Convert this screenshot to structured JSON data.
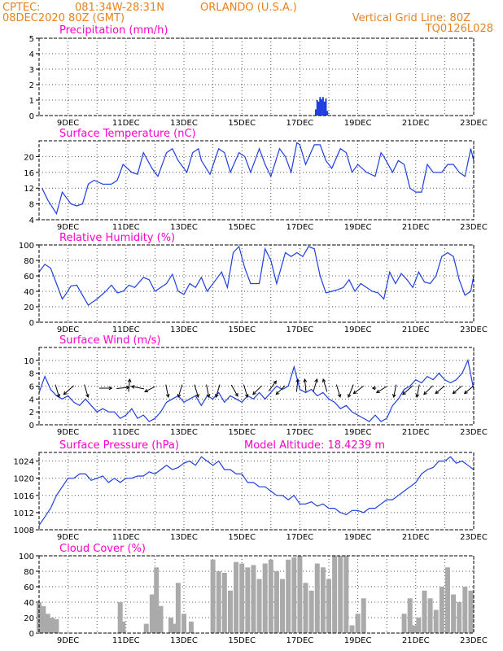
{
  "header": {
    "source": "CPTEC:",
    "coords": "081:34W-28:31N",
    "location": "ORLANDO (U.S.A.)",
    "date": "08DEC2020 80Z (GMT)",
    "grid_note": "Vertical Grid Line: 80Z",
    "code": "TQ0126L028"
  },
  "colors": {
    "header": "#e8821e",
    "title": "#ff00cc",
    "series": "#1f3fe0",
    "bars": "#aaaaaa"
  },
  "chart_data": [
    {
      "id": "precip",
      "type": "bar",
      "title": "Precipitation (mm/h)",
      "xlabels": [
        "9DEC",
        "11DEC",
        "13DEC",
        "15DEC",
        "17DEC",
        "19DEC",
        "21DEC",
        "23DEC"
      ],
      "ylim": [
        0,
        5
      ],
      "yticks": [
        0,
        1,
        2,
        3,
        4,
        5
      ],
      "x": [
        17.55,
        17.6,
        17.65,
        17.7,
        17.75,
        17.8,
        17.85,
        17.9,
        17.95
      ],
      "values": [
        0.4,
        1.0,
        0.9,
        1.2,
        1.05,
        1.2,
        0.9,
        1.1,
        0.3
      ]
    },
    {
      "id": "temp",
      "type": "line",
      "title": "Surface Temperature (nC)",
      "xlabels": [
        "9DEC",
        "11DEC",
        "13DEC",
        "15DEC",
        "17DEC",
        "19DEC",
        "21DEC",
        "23DEC"
      ],
      "ylim": [
        4,
        24
      ],
      "yticks": [
        4,
        8,
        12,
        16,
        20
      ],
      "x": [
        8.1,
        8.3,
        8.6,
        8.8,
        9.1,
        9.3,
        9.5,
        9.7,
        9.9,
        10.2,
        10.5,
        10.7,
        10.9,
        11.2,
        11.4,
        11.6,
        11.9,
        12.1,
        12.4,
        12.6,
        12.8,
        13.1,
        13.3,
        13.5,
        13.6,
        13.9,
        14.2,
        14.4,
        14.6,
        14.9,
        15.1,
        15.3,
        15.6,
        15.8,
        16.0,
        16.3,
        16.5,
        16.7,
        16.9,
        17.0,
        17.2,
        17.5,
        17.7,
        17.9,
        18.1,
        18.4,
        18.6,
        18.8,
        19.0,
        19.3,
        19.6,
        19.8,
        19.9,
        20.2,
        20.4,
        20.6,
        20.8,
        21.0,
        21.2,
        21.4,
        21.6,
        21.9,
        22.1,
        22.3,
        22.5,
        22.7,
        22.9,
        23.0
      ],
      "values": [
        12,
        9,
        5.5,
        11,
        8,
        7.5,
        8,
        13,
        14,
        13,
        13,
        14,
        18,
        16,
        15.5,
        21,
        17,
        15,
        21,
        22,
        19,
        16,
        21,
        22,
        19,
        15.5,
        22,
        21,
        16,
        21,
        20,
        16,
        22,
        18,
        15,
        22,
        20,
        16,
        23.5,
        23,
        18,
        23,
        23,
        19,
        17,
        22,
        21,
        16,
        18,
        16,
        15,
        21,
        20,
        16,
        19,
        18,
        12,
        11,
        11,
        18,
        16,
        16,
        18,
        18,
        16,
        15,
        22,
        19
      ]
    },
    {
      "id": "rh",
      "type": "line",
      "title": "Relative Humidity (%)",
      "xlabels": [
        "9DEC",
        "11DEC",
        "13DEC",
        "15DEC",
        "17DEC",
        "19DEC",
        "21DEC",
        "23DEC"
      ],
      "ylim": [
        0,
        100
      ],
      "yticks": [
        0,
        20,
        40,
        60,
        80,
        100
      ],
      "x": [
        8.0,
        8.2,
        8.4,
        8.6,
        8.8,
        8.9,
        9.1,
        9.3,
        9.5,
        9.7,
        9.8,
        10.0,
        10.3,
        10.5,
        10.7,
        10.9,
        11.1,
        11.3,
        11.6,
        11.8,
        12.0,
        12.2,
        12.4,
        12.6,
        12.8,
        13.0,
        13.2,
        13.4,
        13.6,
        13.8,
        14.1,
        14.3,
        14.5,
        14.7,
        14.9,
        15.1,
        15.3,
        15.6,
        15.8,
        16.0,
        16.2,
        16.5,
        16.7,
        16.9,
        17.1,
        17.3,
        17.5,
        17.7,
        17.9,
        18.1,
        18.3,
        18.5,
        18.7,
        18.9,
        19.1,
        19.3,
        19.5,
        19.7,
        19.9,
        20.1,
        20.3,
        20.5,
        20.7,
        20.9,
        21.1,
        21.3,
        21.5,
        21.7,
        21.9,
        22.1,
        22.3,
        22.5,
        22.7,
        22.9,
        23.0
      ],
      "values": [
        65,
        75,
        70,
        50,
        30,
        35,
        47,
        48,
        35,
        22,
        25,
        30,
        40,
        48,
        38,
        40,
        48,
        45,
        58,
        55,
        40,
        45,
        50,
        62,
        40,
        36,
        50,
        45,
        58,
        40,
        55,
        65,
        45,
        90,
        98,
        70,
        50,
        50,
        95,
        80,
        50,
        90,
        85,
        90,
        85,
        98,
        95,
        60,
        38,
        40,
        42,
        45,
        55,
        40,
        50,
        45,
        40,
        38,
        30,
        65,
        50,
        63,
        55,
        45,
        65,
        52,
        50,
        60,
        85,
        90,
        85,
        55,
        35,
        40,
        60
      ]
    },
    {
      "id": "wind",
      "type": "line",
      "title": "Surface Wind (m/s)",
      "xlabels": [
        "9DEC",
        "11DEC",
        "13DEC",
        "15DEC",
        "17DEC",
        "19DEC",
        "21DEC",
        "23DEC"
      ],
      "ylim": [
        0,
        12
      ],
      "yticks": [
        0,
        2,
        4,
        6,
        8,
        10
      ],
      "x": [
        8.0,
        8.2,
        8.4,
        8.6,
        8.8,
        9.0,
        9.2,
        9.4,
        9.6,
        9.8,
        10.0,
        10.2,
        10.4,
        10.6,
        10.8,
        11.0,
        11.2,
        11.4,
        11.6,
        11.8,
        12.0,
        12.2,
        12.4,
        12.6,
        12.8,
        13.0,
        13.2,
        13.4,
        13.6,
        13.8,
        14.0,
        14.2,
        14.4,
        14.6,
        14.8,
        15.0,
        15.2,
        15.4,
        15.6,
        15.8,
        16.0,
        16.2,
        16.4,
        16.6,
        16.8,
        17.0,
        17.2,
        17.4,
        17.6,
        17.8,
        18.0,
        18.2,
        18.4,
        18.6,
        18.8,
        19.0,
        19.2,
        19.4,
        19.6,
        19.8,
        20.0,
        20.2,
        20.4,
        20.6,
        20.8,
        21.0,
        21.2,
        21.4,
        21.6,
        21.8,
        22.0,
        22.2,
        22.4,
        22.6,
        22.8,
        23.0
      ],
      "values": [
        5,
        7.5,
        5.5,
        4.5,
        4,
        4.5,
        3.5,
        3,
        4,
        3,
        2,
        2.5,
        2,
        2,
        1,
        1.5,
        2.5,
        1,
        1.5,
        0.5,
        1,
        2,
        3.5,
        4,
        4.5,
        3.5,
        4,
        4.5,
        3,
        4.5,
        4,
        5,
        3.5,
        4.5,
        4,
        3.5,
        4.5,
        4,
        5,
        4,
        5,
        6,
        5.5,
        6,
        9,
        5.5,
        5,
        5.5,
        4.5,
        5,
        4,
        3.5,
        2.5,
        3,
        2,
        1.5,
        1,
        0.5,
        1.5,
        0.5,
        1,
        3,
        4,
        5.5,
        6,
        7,
        6.5,
        7.5,
        7,
        8,
        7,
        6.5,
        7,
        8,
        10,
        5.5
      ],
      "arrows": [
        {
          "x": 8.6,
          "dx": 0.3,
          "dy": -1
        },
        {
          "x": 9.1,
          "dx": -0.8,
          "dy": -0.7
        },
        {
          "x": 9.6,
          "dx": 0.3,
          "dy": -1
        },
        {
          "x": 10.2,
          "dx": 1,
          "dy": 0
        },
        {
          "x": 10.8,
          "dx": 1,
          "dy": 0.1
        },
        {
          "x": 11.1,
          "dx": 0.1,
          "dy": 1
        },
        {
          "x": 11.5,
          "dx": -1,
          "dy": 0.2
        },
        {
          "x": 11.9,
          "dx": -0.8,
          "dy": -0.4
        },
        {
          "x": 12.4,
          "dx": 0.2,
          "dy": -1
        },
        {
          "x": 12.9,
          "dx": -0.3,
          "dy": -1
        },
        {
          "x": 13.4,
          "dx": 0.3,
          "dy": -1
        },
        {
          "x": 13.8,
          "dx": 0.2,
          "dy": -1
        },
        {
          "x": 14.2,
          "dx": -0.3,
          "dy": -1
        },
        {
          "x": 14.7,
          "dx": 0.5,
          "dy": -0.9
        },
        {
          "x": 15.1,
          "dx": 0.3,
          "dy": -1
        },
        {
          "x": 15.6,
          "dx": -0.7,
          "dy": -0.7
        },
        {
          "x": 16.0,
          "dx": 0.6,
          "dy": 0.8
        },
        {
          "x": 16.4,
          "dx": -0.7,
          "dy": -0.7
        },
        {
          "x": 16.9,
          "dx": 0.1,
          "dy": 1
        },
        {
          "x": 17.2,
          "dx": -0.1,
          "dy": 1
        },
        {
          "x": 17.5,
          "dx": 0.3,
          "dy": 1
        },
        {
          "x": 17.9,
          "dx": -0.3,
          "dy": 1
        },
        {
          "x": 18.3,
          "dx": 0.3,
          "dy": -1
        },
        {
          "x": 18.8,
          "dx": -0.4,
          "dy": -1
        },
        {
          "x": 19.1,
          "dx": -0.8,
          "dy": -0.6
        },
        {
          "x": 19.6,
          "dx": -0.3,
          "dy": 0
        },
        {
          "x": 19.9,
          "dx": -0.8,
          "dy": -0.5
        },
        {
          "x": 20.3,
          "dx": -0.2,
          "dy": -1
        },
        {
          "x": 20.8,
          "dx": -0.8,
          "dy": -0.7
        },
        {
          "x": 21.1,
          "dx": -0.2,
          "dy": -1
        },
        {
          "x": 21.5,
          "dx": -0.7,
          "dy": -0.7
        },
        {
          "x": 21.9,
          "dx": -0.7,
          "dy": -0.6
        },
        {
          "x": 22.5,
          "dx": -0.7,
          "dy": -0.6
        },
        {
          "x": 22.9,
          "dx": -0.7,
          "dy": -0.6
        }
      ]
    },
    {
      "id": "pressure",
      "type": "line",
      "title": "Surface Pressure (hPa)",
      "annotation": "Model Altitude: 18.4239 m",
      "xlabels": [
        "9DEC",
        "11DEC",
        "13DEC",
        "15DEC",
        "17DEC",
        "19DEC",
        "21DEC",
        "23DEC"
      ],
      "ylim": [
        1008,
        1026
      ],
      "yticks": [
        1008,
        1012,
        1016,
        1020,
        1024
      ],
      "x": [
        8.0,
        8.2,
        8.4,
        8.6,
        8.8,
        9.0,
        9.2,
        9.4,
        9.6,
        9.8,
        10.0,
        10.2,
        10.4,
        10.6,
        10.8,
        11.0,
        11.2,
        11.4,
        11.6,
        11.8,
        12.0,
        12.2,
        12.4,
        12.6,
        12.8,
        13.0,
        13.2,
        13.4,
        13.6,
        13.8,
        14.0,
        14.2,
        14.4,
        14.6,
        14.8,
        15.0,
        15.2,
        15.4,
        15.6,
        15.8,
        16.0,
        16.2,
        16.4,
        16.6,
        16.8,
        17.0,
        17.2,
        17.4,
        17.6,
        17.8,
        18.0,
        18.2,
        18.4,
        18.6,
        18.8,
        19.0,
        19.2,
        19.4,
        19.6,
        19.8,
        20.0,
        20.2,
        20.4,
        20.6,
        20.8,
        21.0,
        21.2,
        21.4,
        21.6,
        21.8,
        22.0,
        22.2,
        22.4,
        22.6,
        22.8,
        23.0
      ],
      "values": [
        1009,
        1011,
        1013,
        1016,
        1018,
        1020,
        1020,
        1021,
        1021,
        1019.5,
        1020,
        1020.5,
        1019,
        1020,
        1019,
        1020,
        1020,
        1020.5,
        1020.5,
        1021.5,
        1021,
        1022,
        1023,
        1022,
        1022.5,
        1023.5,
        1024,
        1023,
        1025,
        1024,
        1023,
        1024,
        1022,
        1022,
        1021,
        1021,
        1019,
        1019,
        1018,
        1018,
        1017,
        1016,
        1016,
        1015,
        1016,
        1014,
        1014,
        1014.5,
        1013.5,
        1014,
        1013,
        1013,
        1012,
        1011.5,
        1012.5,
        1012.5,
        1012,
        1013,
        1013,
        1014,
        1015,
        1015,
        1016,
        1017,
        1018,
        1019,
        1021,
        1022,
        1022.5,
        1024,
        1024,
        1025,
        1023.5,
        1024,
        1023,
        1022
      ]
    },
    {
      "id": "cloud",
      "type": "bar",
      "title": "Cloud Cover (%)",
      "xlabels": [
        "9DEC",
        "11DEC",
        "13DEC",
        "15DEC",
        "17DEC",
        "19DEC",
        "21DEC",
        "23DEC"
      ],
      "ylim": [
        0,
        100
      ],
      "yticks": [
        0,
        20,
        40,
        60,
        80,
        100
      ],
      "x": [
        8.0,
        8.15,
        8.3,
        8.45,
        8.6,
        10.8,
        10.9,
        11.7,
        11.9,
        12.05,
        12.2,
        12.55,
        12.7,
        12.8,
        13.0,
        13.25,
        14.0,
        14.2,
        14.4,
        14.6,
        14.8,
        15.0,
        15.2,
        15.4,
        15.6,
        15.8,
        16.0,
        16.2,
        16.4,
        16.6,
        16.8,
        17.0,
        17.2,
        17.4,
        17.6,
        17.8,
        18.0,
        18.2,
        18.4,
        18.6,
        18.8,
        19.0,
        19.2,
        20.6,
        20.8,
        20.95,
        21.1,
        21.3,
        21.5,
        21.7,
        21.9,
        22.1,
        22.3,
        22.5,
        22.7,
        22.9
      ],
      "values": [
        40,
        35,
        25,
        20,
        18,
        40,
        15,
        12,
        50,
        85,
        35,
        20,
        12,
        65,
        25,
        15,
        95,
        80,
        78,
        55,
        92,
        90,
        85,
        88,
        70,
        90,
        95,
        80,
        70,
        95,
        98,
        100,
        65,
        55,
        90,
        85,
        70,
        100,
        100,
        100,
        10,
        25,
        45,
        25,
        45,
        10,
        20,
        55,
        45,
        30,
        60,
        85,
        50,
        40,
        60,
        55
      ]
    }
  ]
}
